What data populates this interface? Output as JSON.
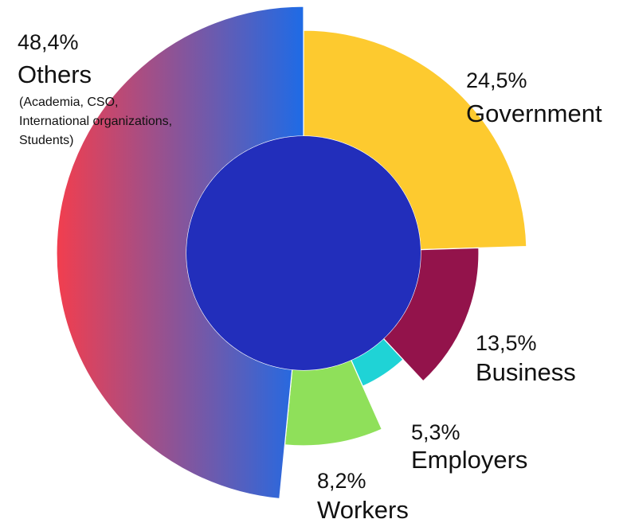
{
  "chart_data": {
    "type": "pie",
    "variant": "variable-radius donut (rose)",
    "slices": [
      {
        "percent_label": "24,5%",
        "label": "Government",
        "value": 24.5,
        "color": "#FDCA2F"
      },
      {
        "percent_label": "13,5%",
        "label": "Business",
        "value": 13.5,
        "color": "#93134B"
      },
      {
        "percent_label": "5,3%",
        "label": "Employers",
        "value": 5.3,
        "color": "#1FD3D6"
      },
      {
        "percent_label": "8,2%",
        "label": "Workers",
        "value": 8.2,
        "color": "#8FE05A"
      },
      {
        "percent_label": "48,4%",
        "label": "Others",
        "value": 48.4,
        "note": "(Academia, CSO, International organizations, Students)",
        "gradient": [
          "#F23E4E",
          "#1E6BE6"
        ]
      }
    ],
    "center_color": "#222EBB",
    "legend": "none"
  }
}
